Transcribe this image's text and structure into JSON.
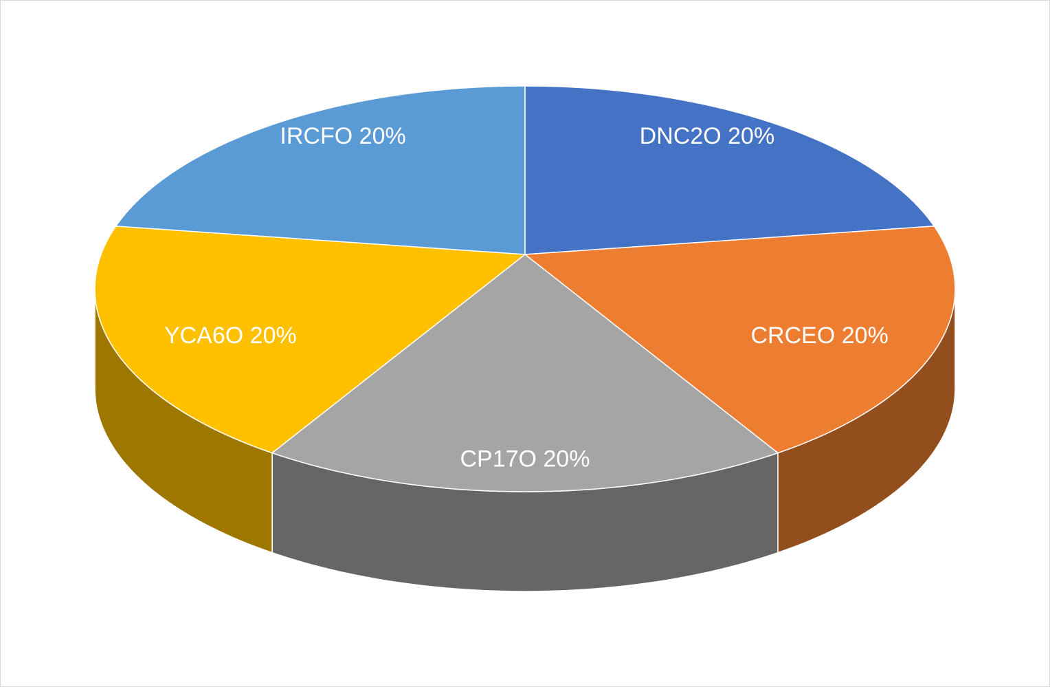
{
  "chart_data": {
    "type": "pie3d",
    "categories": [
      "DNC2O",
      "CRCEO",
      "CP17O",
      "YCA6O",
      "IRCFO"
    ],
    "values": [
      20,
      20,
      20,
      20,
      20
    ],
    "value_labels": [
      "20%",
      "20%",
      "20%",
      "20%",
      "20%"
    ],
    "colors": [
      "#4472c4",
      "#ed7d31",
      "#a5a5a5",
      "#ffc000",
      "#5b9bd5"
    ]
  }
}
